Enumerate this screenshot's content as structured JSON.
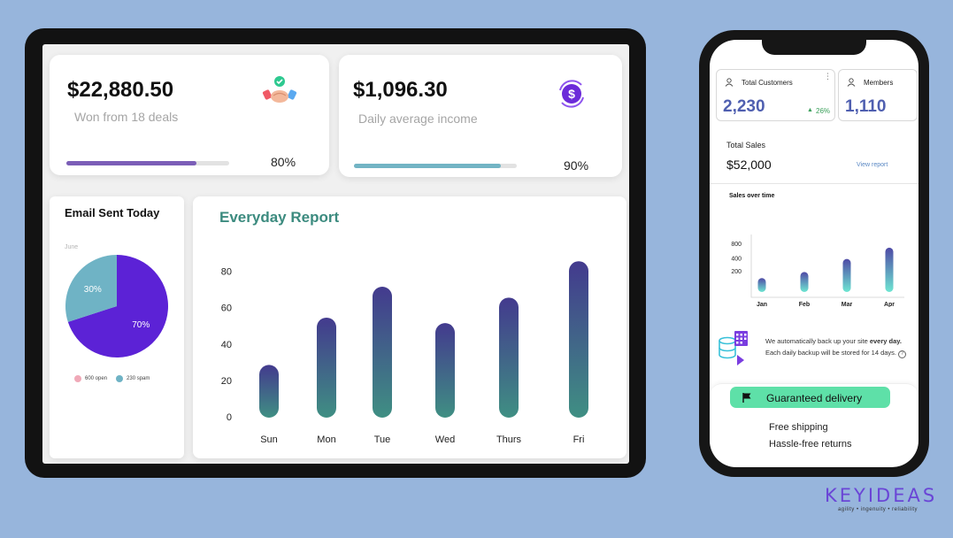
{
  "tablet": {
    "won_card": {
      "amount": "$22,880.50",
      "subtitle": "Won from 18 deals",
      "progress_percent": 80,
      "progress_label": "80%",
      "bar_color": "#7b5eb7",
      "icon": "handshake-icon"
    },
    "income_card": {
      "amount": "$1,096.30",
      "subtitle": "Daily average income",
      "progress_percent": 90,
      "progress_label": "90%",
      "bar_color": "#72b4c4",
      "icon": "dollar-cycle-icon"
    },
    "email_card": {
      "title": "Email Sent Today",
      "pie_caption": "June",
      "chart_data": {
        "type": "pie",
        "slices": [
          {
            "label": "70%",
            "value": 70,
            "color": "#5c22d6"
          },
          {
            "label": "30%",
            "value": 30,
            "color": "#6fb3c5"
          }
        ],
        "legend": [
          {
            "label": "600 open",
            "color": "#f0a9b8"
          },
          {
            "label": "230 spam",
            "color": "#6fb3c5"
          }
        ]
      }
    },
    "report_card": {
      "title": "Everyday Report",
      "chart_data": {
        "type": "bar",
        "categories": [
          "Sun",
          "Mon",
          "Tue",
          "Wed",
          "Thurs",
          "Fri"
        ],
        "values": [
          29,
          55,
          72,
          52,
          66,
          86
        ],
        "y_ticks": [
          "0",
          "20",
          "40",
          "60",
          "80"
        ],
        "ylim": [
          0,
          90
        ],
        "grid": false,
        "gradient": [
          "#433a8e",
          "#3f8f83"
        ]
      }
    }
  },
  "phone": {
    "total_customers": {
      "label": "Total Customers",
      "value": "2,230",
      "change": "26%"
    },
    "members": {
      "label": "Members",
      "value": "1,110"
    },
    "total_sales": {
      "label": "Total Sales",
      "value": "$52,000",
      "link": "View report"
    },
    "sales_over_time": {
      "title": "Sales over time",
      "chart_data": {
        "type": "bar",
        "categories": [
          "Jan",
          "Feb",
          "Mar",
          "Apr"
        ],
        "values": [
          160,
          230,
          380,
          510
        ],
        "y_ticks": [
          "200",
          "400",
          "800"
        ],
        "grid": false,
        "gradient": [
          "#4f4aa6",
          "#6ee6d2"
        ]
      }
    },
    "backup": {
      "line1_start": "We automatically back up your site ",
      "line1_bold": "every day.",
      "line2": "Each daily backup will be stored for 14 days."
    },
    "promo": {
      "delivery": "Guaranteed delivery",
      "line1": "Free shipping",
      "line2": "Hassle-free returns"
    }
  },
  "brand": {
    "name": "KEYIDEAS",
    "tagline": "agility  •  ingenuity  •  reliability"
  }
}
